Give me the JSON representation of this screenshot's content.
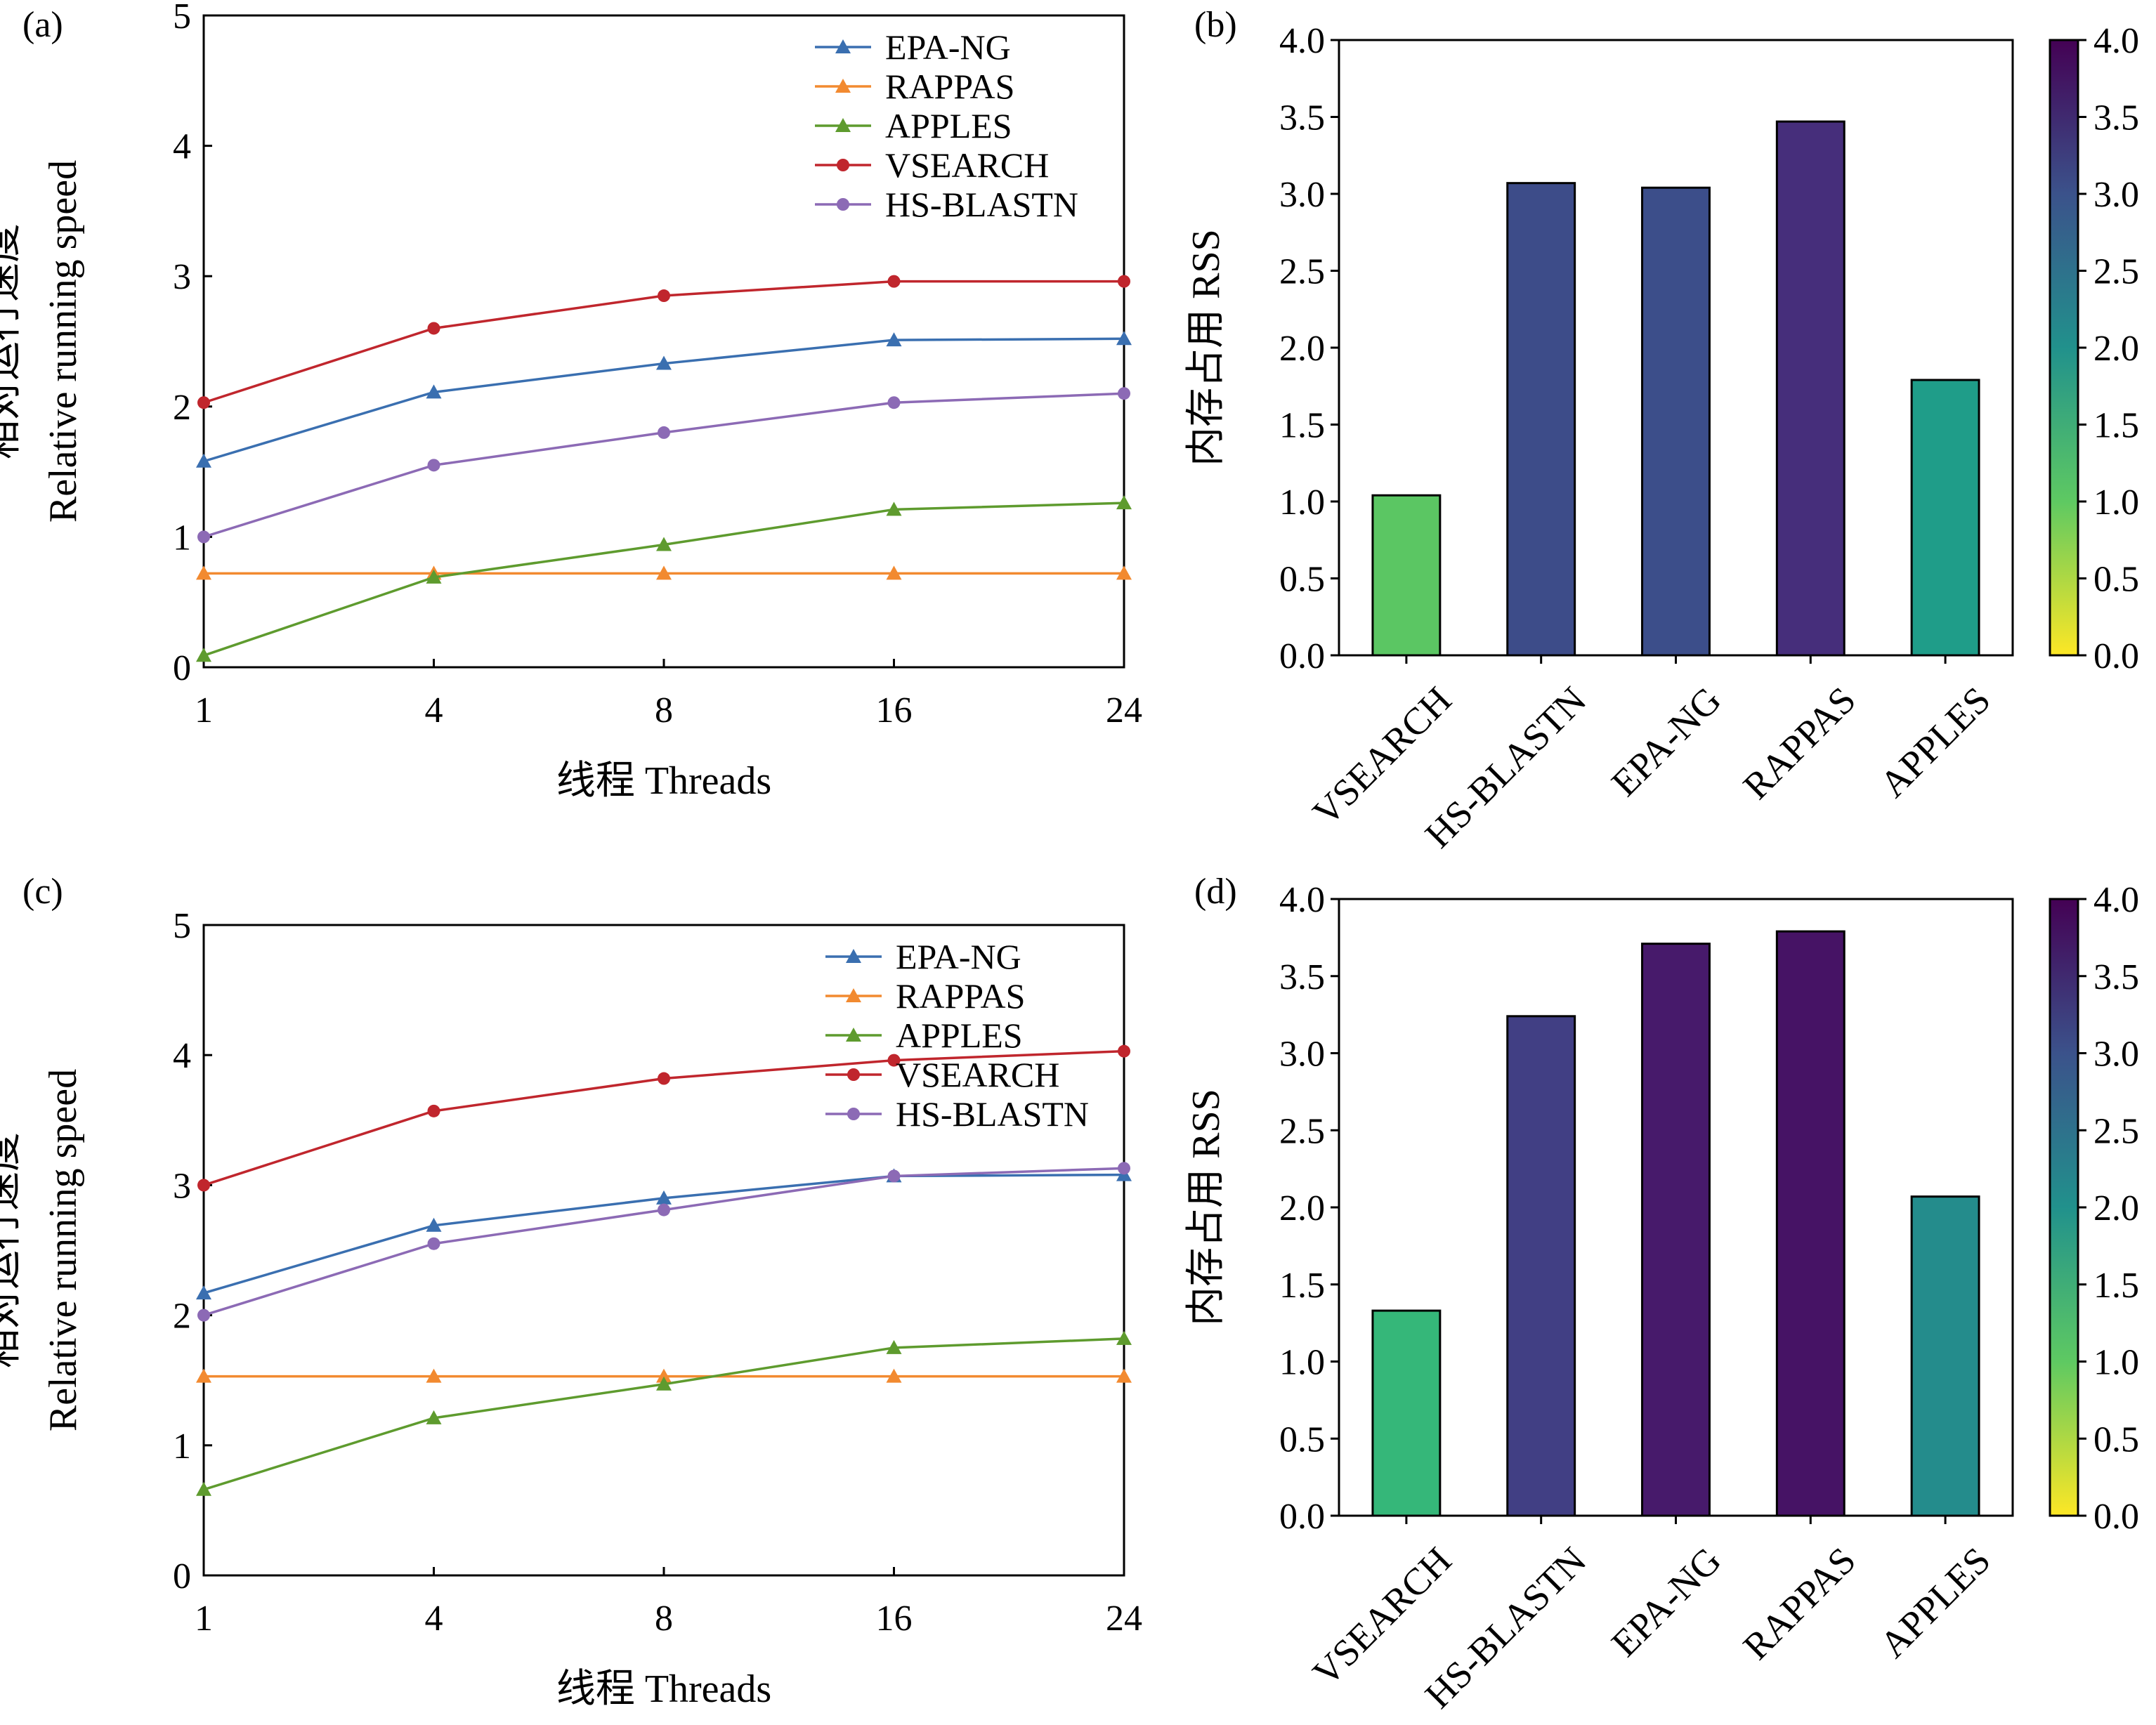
{
  "chart_data": [
    {
      "panel": "(a)",
      "type": "line",
      "xlabel_line": "线程 Threads",
      "ylabel_line1": "相对运行速度",
      "ylabel_line2": "Relative running speed",
      "categories": [
        "1",
        "4",
        "8",
        "16",
        "24"
      ],
      "ylim": [
        0,
        5
      ],
      "yticks": [
        "0",
        "1",
        "2",
        "3",
        "4",
        "5"
      ],
      "grid": false,
      "legend_position": "top-right",
      "series": [
        {
          "name": "EPA-NG",
          "marker": "triangle",
          "color": "#3a6fb0",
          "values": [
            1.58,
            2.11,
            2.33,
            2.51,
            2.52
          ]
        },
        {
          "name": "RAPPAS",
          "marker": "triangle",
          "color": "#f28a30",
          "values": [
            0.72,
            0.72,
            0.72,
            0.72,
            0.72
          ]
        },
        {
          "name": "APPLES",
          "marker": "triangle",
          "color": "#5e9b2e",
          "values": [
            0.09,
            0.69,
            0.94,
            1.21,
            1.26
          ]
        },
        {
          "name": "VSEARCH",
          "marker": "circle",
          "color": "#c0262d",
          "values": [
            2.03,
            2.6,
            2.85,
            2.96,
            2.96
          ]
        },
        {
          "name": "HS-BLASTN",
          "marker": "circle",
          "color": "#8c6ab5",
          "values": [
            1.0,
            1.55,
            1.8,
            2.03,
            2.1
          ]
        }
      ]
    },
    {
      "panel": "(b)",
      "type": "bar",
      "ylabel": "内存占用 RSS",
      "categories": [
        "VSEARCH",
        "HS-BLASTN",
        "EPA-NG",
        "RAPPAS",
        "APPLES"
      ],
      "values": [
        1.04,
        3.07,
        3.04,
        3.47,
        1.79
      ],
      "ylim": [
        0,
        4
      ],
      "yticks": [
        "0.0",
        "0.5",
        "1.0",
        "1.5",
        "2.0",
        "2.5",
        "3.0",
        "3.5",
        "4.0"
      ],
      "colorbar_ticks": [
        "0.0",
        "0.5",
        "1.0",
        "1.5",
        "2.0",
        "2.5",
        "3.0",
        "3.5",
        "4.0"
      ],
      "colormap": "viridis_r"
    },
    {
      "panel": "(c)",
      "type": "line",
      "xlabel_line": "线程 Threads",
      "ylabel_line1": "相对运行速度",
      "ylabel_line2": "Relative running speed",
      "categories": [
        "1",
        "4",
        "8",
        "16",
        "24"
      ],
      "ylim": [
        0,
        5
      ],
      "yticks": [
        "0",
        "1",
        "2",
        "3",
        "4",
        "5"
      ],
      "grid": false,
      "legend_position": "top-right",
      "series": [
        {
          "name": "EPA-NG",
          "marker": "triangle",
          "color": "#3a6fb0",
          "values": [
            2.17,
            2.69,
            2.9,
            3.07,
            3.08
          ]
        },
        {
          "name": "RAPPAS",
          "marker": "triangle",
          "color": "#f28a30",
          "values": [
            1.53,
            1.53,
            1.53,
            1.53,
            1.53
          ]
        },
        {
          "name": "APPLES",
          "marker": "triangle",
          "color": "#5e9b2e",
          "values": [
            0.66,
            1.21,
            1.47,
            1.75,
            1.82
          ]
        },
        {
          "name": "VSEARCH",
          "marker": "circle",
          "color": "#c0262d",
          "values": [
            3.0,
            3.57,
            3.82,
            3.96,
            4.03
          ]
        },
        {
          "name": "HS-BLASTN",
          "marker": "circle",
          "color": "#8c6ab5",
          "values": [
            2.0,
            2.55,
            2.81,
            3.07,
            3.13
          ]
        }
      ]
    },
    {
      "panel": "(d)",
      "type": "bar",
      "ylabel": "内存占用 RSS",
      "categories": [
        "VSEARCH",
        "HS-BLASTN",
        "EPA-NG",
        "RAPPAS",
        "APPLES"
      ],
      "values": [
        1.33,
        3.24,
        3.71,
        3.79,
        2.07
      ],
      "ylim": [
        0,
        4
      ],
      "yticks": [
        "0.0",
        "0.5",
        "1.0",
        "1.5",
        "2.0",
        "2.5",
        "3.0",
        "3.5",
        "4.0"
      ],
      "colorbar_ticks": [
        "0.0",
        "0.5",
        "1.0",
        "1.5",
        "2.0",
        "2.5",
        "3.0",
        "3.5",
        "4.0"
      ],
      "colormap": "viridis_r"
    }
  ]
}
